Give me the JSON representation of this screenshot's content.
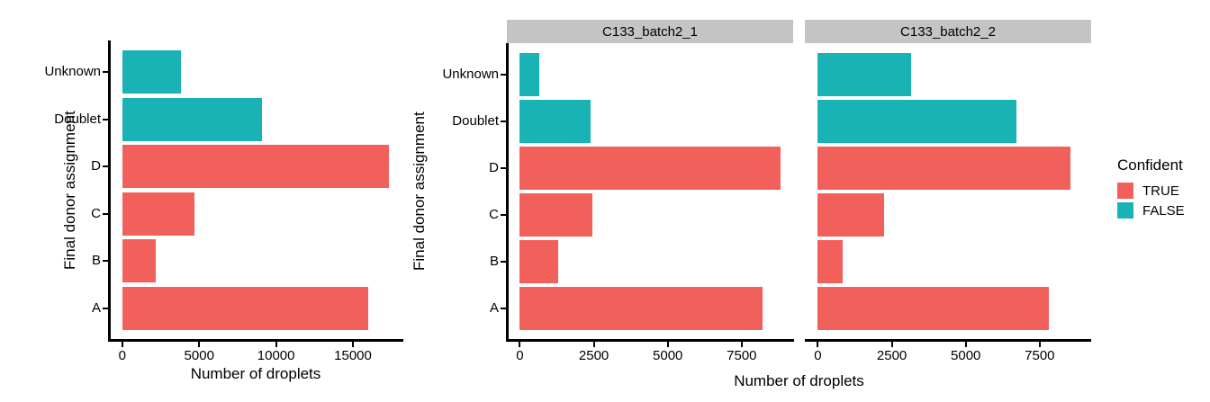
{
  "figure": {
    "x_axis_title": "Number of droplets",
    "y_axis_title": "Final donor assignment",
    "legend": {
      "title": "Confident",
      "entries": [
        {
          "label": "TRUE",
          "color": "#F2605C"
        },
        {
          "label": "FALSE",
          "color": "#19B2B5"
        }
      ]
    }
  },
  "colors": {
    "confident_true": "#F2605C",
    "confident_false": "#19B2B5",
    "strip_bg": "#C4C4C4",
    "axis": "#000000"
  },
  "chart_data": [
    {
      "id": "total-plot",
      "type": "bar",
      "orientation": "horizontal",
      "title": "",
      "xlabel": "Number of droplets",
      "ylabel": "Final donor assignment",
      "categories_top_to_bottom": [
        "Unknown",
        "Doublet",
        "D",
        "C",
        "B",
        "A"
      ],
      "confident_by_category": [
        false,
        false,
        true,
        true,
        true,
        true
      ],
      "values": [
        3800,
        9100,
        17350,
        4700,
        2150,
        16000
      ],
      "x_ticks": [
        0,
        5000,
        10000,
        15000
      ],
      "xlim": [
        -870,
        18220
      ],
      "grid": false,
      "legend_position": "right"
    },
    {
      "id": "faceted-plot",
      "type": "bar",
      "orientation": "horizontal",
      "title": "",
      "xlabel": "Number of droplets",
      "ylabel": "Final donor assignment",
      "categories_top_to_bottom": [
        "Unknown",
        "Doublet",
        "D",
        "C",
        "B",
        "A"
      ],
      "confident_by_category": [
        false,
        false,
        true,
        true,
        true,
        true
      ],
      "facets": [
        {
          "label": "C133_batch2_1",
          "values": [
            650,
            2400,
            8800,
            2450,
            1300,
            8200
          ]
        },
        {
          "label": "C133_batch2_2",
          "values": [
            3150,
            6700,
            8550,
            2250,
            850,
            7800
          ]
        }
      ],
      "x_ticks": [
        0,
        2500,
        5000,
        7500
      ],
      "xlim": [
        -440,
        9240
      ],
      "grid": false,
      "legend_position": "right"
    }
  ]
}
